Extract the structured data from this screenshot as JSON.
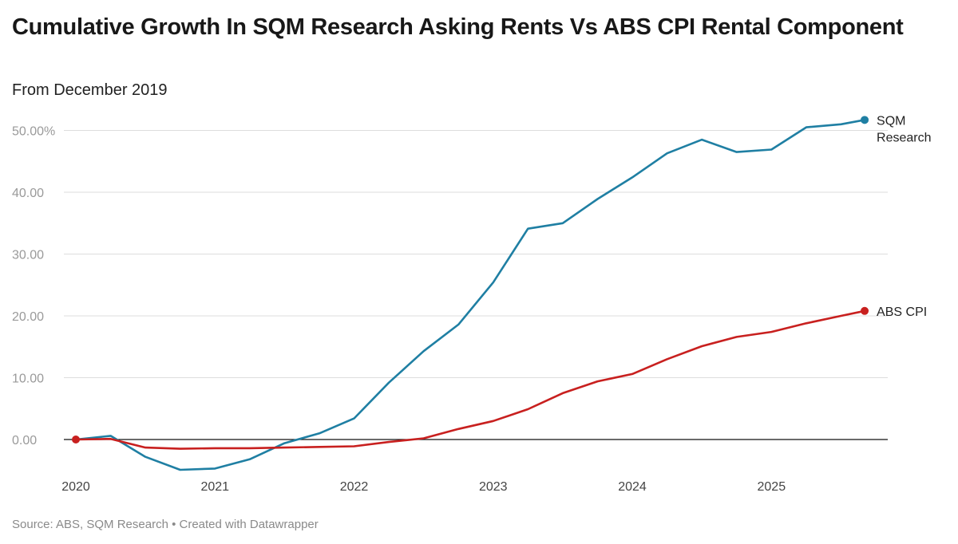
{
  "chart_data": {
    "type": "line",
    "title": "Cumulative Growth In SQM Research Asking Rents Vs ABS CPI Rental Component",
    "subtitle": "From December 2019",
    "source": "Source: ABS, SQM Research • Created with Datawrapper",
    "ylim": [
      -5,
      53
    ],
    "xlim": [
      2020,
      2025.75
    ],
    "y_ticks": [
      {
        "value": 50,
        "label": "50.00%"
      },
      {
        "value": 40,
        "label": "40.00"
      },
      {
        "value": 30,
        "label": "30.00"
      },
      {
        "value": 20,
        "label": "20.00"
      },
      {
        "value": 10,
        "label": "10.00"
      },
      {
        "value": 0,
        "label": "0.00"
      }
    ],
    "x_ticks": [
      {
        "value": 2020,
        "label": "2020"
      },
      {
        "value": 2021,
        "label": "2021"
      },
      {
        "value": 2022,
        "label": "2022"
      },
      {
        "value": 2023,
        "label": "2023"
      },
      {
        "value": 2024,
        "label": "2024"
      },
      {
        "value": 2025,
        "label": "2025"
      }
    ],
    "series": [
      {
        "name": "SQM Research",
        "label_lines": [
          "SQM",
          "Research"
        ],
        "color": "#1f7fa3",
        "x": [
          2020,
          2020.25,
          2020.5,
          2020.75,
          2021,
          2021.25,
          2021.5,
          2021.75,
          2022,
          2022.25,
          2022.5,
          2022.75,
          2023,
          2023.25,
          2023.5,
          2023.75,
          2024,
          2024.25,
          2024.5,
          2024.75,
          2025,
          2025.25,
          2025.5,
          2025.67
        ],
        "values": [
          0,
          0.6,
          -2.8,
          -4.9,
          -4.7,
          -3.2,
          -0.6,
          1.0,
          3.4,
          9.2,
          14.3,
          18.6,
          25.4,
          34.1,
          35.0,
          38.9,
          42.4,
          46.3,
          48.5,
          46.5,
          46.9,
          50.5,
          51.0,
          51.7
        ]
      },
      {
        "name": "ABS CPI",
        "label_lines": [
          "ABS CPI"
        ],
        "color": "#c8201f",
        "x": [
          2020,
          2020.25,
          2020.5,
          2020.75,
          2021,
          2021.25,
          2021.5,
          2021.75,
          2022,
          2022.25,
          2022.5,
          2022.75,
          2023,
          2023.25,
          2023.5,
          2023.75,
          2024,
          2024.25,
          2024.5,
          2024.75,
          2025,
          2025.25,
          2025.5,
          2025.67
        ],
        "values": [
          0,
          0.1,
          -1.3,
          -1.5,
          -1.4,
          -1.4,
          -1.3,
          -1.2,
          -1.1,
          -0.4,
          0.2,
          1.7,
          3.0,
          4.9,
          7.5,
          9.4,
          10.6,
          13.0,
          15.1,
          16.6,
          17.4,
          18.8,
          20.0,
          20.8
        ]
      }
    ]
  }
}
